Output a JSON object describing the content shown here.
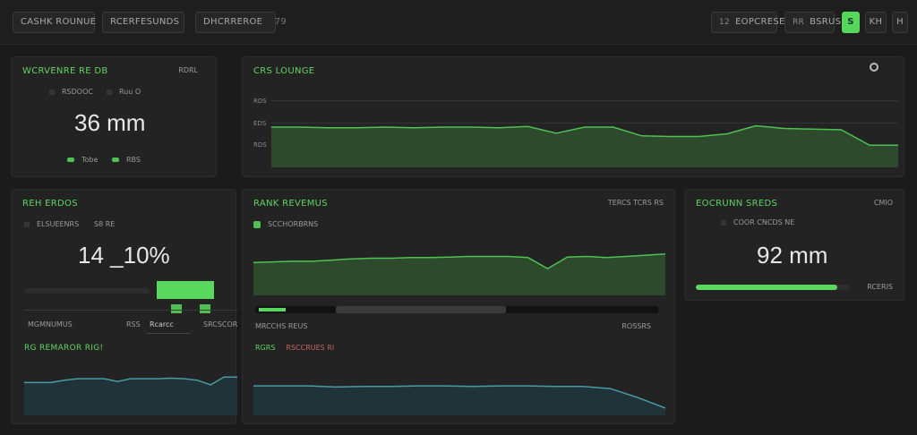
{
  "topbar": {
    "left_buttons": [
      "CASHK ROUNUE",
      "RCERFESUNDS",
      "DHCRREROE"
    ],
    "dhcr_badge": "79",
    "right_buttons": [
      {
        "icon": "12",
        "label": "EOPCRESE"
      },
      {
        "icon": "RR",
        "label": "BSRUS"
      }
    ],
    "toggle_active": "S",
    "toggle_b": "KH",
    "toggle_c": "H"
  },
  "panel_a": {
    "title": "WCRVENRE RE DB",
    "corner": "RDRL",
    "sub_left": "RSDOOC",
    "sub_right": "Ruu O",
    "value": "36 mm",
    "legend_1": "Tobe",
    "legend_2": "RBS"
  },
  "panel_b": {
    "title": "CRS LOUNGE",
    "ticks": [
      "RDS",
      "EDS",
      "RDS"
    ]
  },
  "panel_c": {
    "title": "REH ERDOS",
    "sub_left": "ELSUEENRS",
    "sub_right": "S8 RE",
    "value": "14 _10%",
    "label_1": "MGMNUMUS",
    "label_2": "RSS",
    "label_3": "Rcarcc",
    "label_4": "SRCSCOR",
    "mini_title": "RG REMAROR RIG!"
  },
  "panel_d": {
    "title": "RANK REVEMUS",
    "corner": "TERCS  TCRS  RS",
    "legend": "SCCHORBRNS",
    "label": "MRCCHS REUS",
    "label_r": "ROSSRS",
    "mini_1": "RGRS",
    "mini_2": "RSCCRUES RI"
  },
  "panel_e": {
    "title": "EOCRUNN SREDS",
    "corner": "CMIO",
    "sub": "COOR CNCDS NE",
    "value": "92 mm",
    "bar_label": "RCERIS",
    "bar_progress": 0.92
  },
  "colors": {
    "accent": "#5fd462",
    "line_green": "#4fc153",
    "line_teal": "#4a9aa8",
    "background": "#1b1b1b"
  },
  "chart_data": [
    {
      "type": "area",
      "series": [
        {
          "values": [
            60,
            60,
            59,
            59,
            60,
            59,
            60,
            60,
            59,
            61,
            51,
            60,
            60,
            47,
            46,
            46,
            50,
            62,
            58,
            57,
            56,
            33,
            33
          ]
        }
      ]
    },
    {
      "type": "area",
      "series": [
        {
          "values": [
            54,
            55,
            56,
            56,
            58,
            60,
            61,
            61,
            62,
            62,
            63,
            64,
            64,
            64,
            62,
            44,
            63,
            64,
            62,
            64,
            66,
            68
          ]
        }
      ]
    },
    {
      "type": "area",
      "series": [
        {
          "values": [
            59,
            59,
            59,
            63,
            66,
            66,
            66,
            61,
            66,
            66,
            66,
            67,
            66,
            63,
            55,
            69,
            69
          ]
        }
      ]
    },
    {
      "type": "area",
      "series": [
        {
          "values": [
            53,
            53,
            53,
            51,
            52,
            52,
            53,
            53,
            52,
            53,
            53,
            52,
            52,
            48,
            32,
            13
          ]
        }
      ]
    }
  ]
}
